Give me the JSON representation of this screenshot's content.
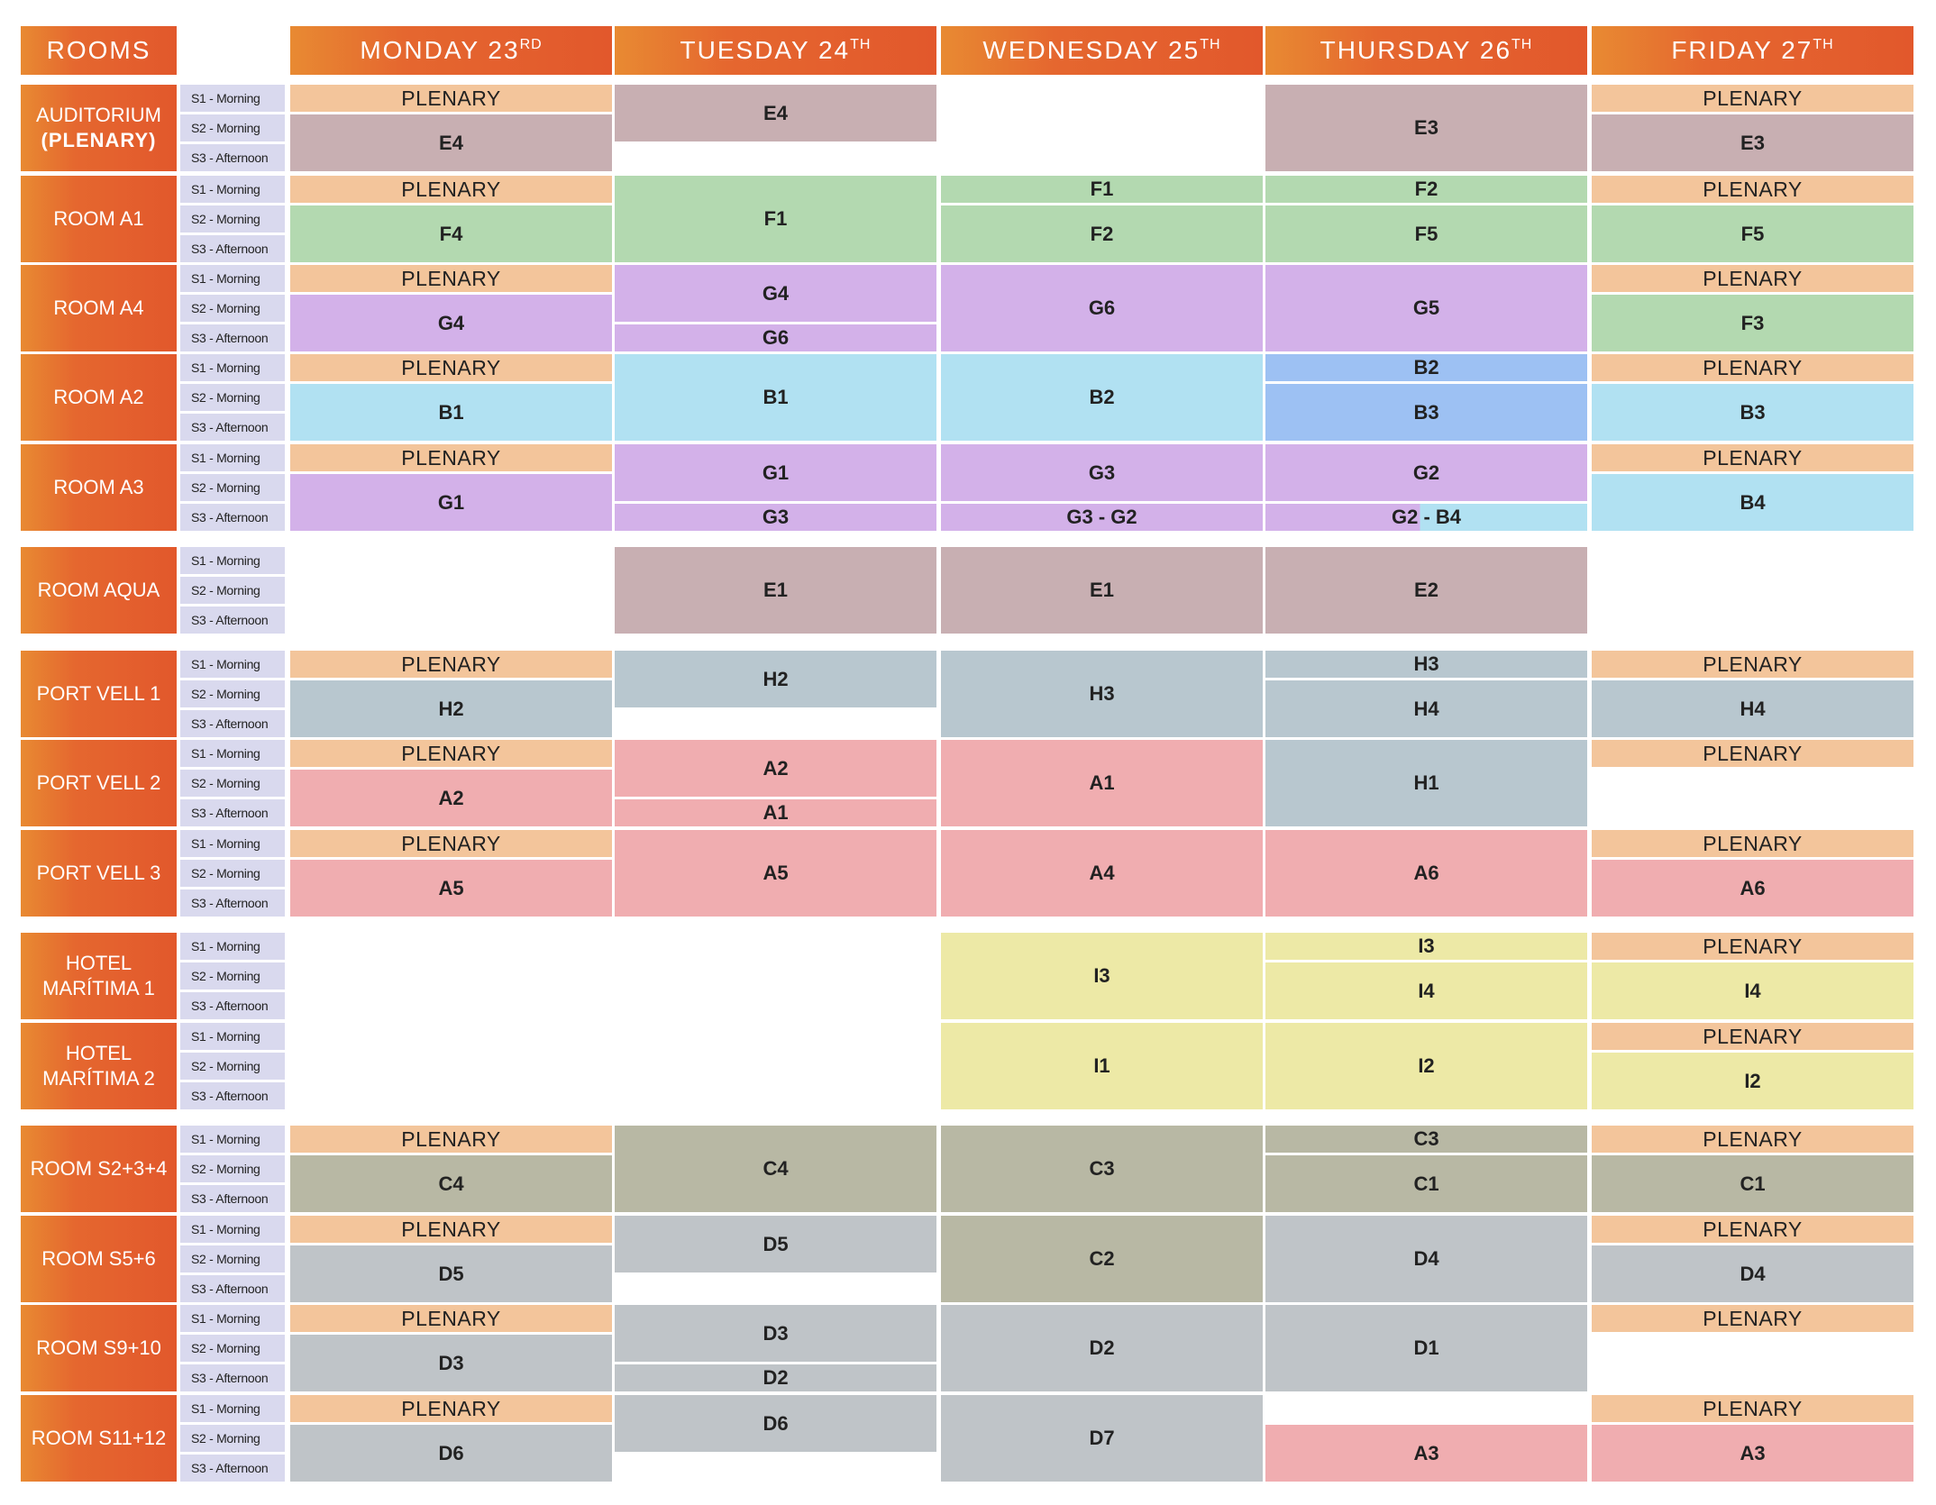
{
  "header": {
    "rooms_label": "ROOMS",
    "days": [
      {
        "name": "MONDAY 23",
        "suffix": "RD"
      },
      {
        "name": "TUESDAY 24",
        "suffix": "TH"
      },
      {
        "name": "WEDNESDAY 25",
        "suffix": "TH"
      },
      {
        "name": "THURSDAY 26",
        "suffix": "TH"
      },
      {
        "name": "FRIDAY 27",
        "suffix": "TH"
      }
    ]
  },
  "session_labels": [
    "S1 - Morning",
    "S2 - Morning",
    "S3 - Afternoon"
  ],
  "colors": {
    "header_gradient_start": "#e88a32",
    "header_gradient_end": "#e2582c",
    "session_bg": "#d9d9ee",
    "plenary": "#f3c59b",
    "E": "#c8afb2",
    "F": "#b3d9b0",
    "G": "#d3b1e9",
    "B": "#b1e1f2",
    "B_dark": "#9dc1f3",
    "H": "#b8c7cf",
    "A": "#f0adb0",
    "I": "#ecead1",
    "I_yellow": "#ede9a6",
    "C": "#b8b8a4",
    "D": "#bfc4c8"
  },
  "rooms": [
    {
      "name": "AUDITORIUM",
      "sub": "(PLENARY)",
      "group": 0,
      "days": [
        [
          {
            "s": 0,
            "n": 1,
            "label": "PLENARY",
            "c": "plenary"
          },
          {
            "s": 1,
            "n": 2,
            "label": "E4",
            "c": "E"
          }
        ],
        [
          {
            "s": 0,
            "n": 2,
            "label": "E4",
            "c": "E"
          }
        ],
        [],
        [
          {
            "s": 0,
            "n": 3,
            "label": "E3",
            "c": "E"
          }
        ],
        [
          {
            "s": 0,
            "n": 1,
            "label": "PLENARY",
            "c": "plenary"
          },
          {
            "s": 1,
            "n": 2,
            "label": "E3",
            "c": "E"
          }
        ]
      ]
    },
    {
      "name": "ROOM A1",
      "group": 0,
      "days": [
        [
          {
            "s": 0,
            "n": 1,
            "label": "PLENARY",
            "c": "plenary"
          },
          {
            "s": 1,
            "n": 2,
            "label": "F4",
            "c": "F"
          }
        ],
        [
          {
            "s": 0,
            "n": 3,
            "label": "F1",
            "c": "F"
          }
        ],
        [
          {
            "s": 0,
            "n": 1,
            "label": "F1",
            "c": "F"
          },
          {
            "s": 1,
            "n": 2,
            "label": "F2",
            "c": "F"
          }
        ],
        [
          {
            "s": 0,
            "n": 1,
            "label": "F2",
            "c": "F"
          },
          {
            "s": 1,
            "n": 2,
            "label": "F5",
            "c": "F"
          }
        ],
        [
          {
            "s": 0,
            "n": 1,
            "label": "PLENARY",
            "c": "plenary"
          },
          {
            "s": 1,
            "n": 2,
            "label": "F5",
            "c": "F"
          }
        ]
      ]
    },
    {
      "name": "ROOM A4",
      "group": 0,
      "days": [
        [
          {
            "s": 0,
            "n": 1,
            "label": "PLENARY",
            "c": "plenary"
          },
          {
            "s": 1,
            "n": 2,
            "label": "G4",
            "c": "G"
          }
        ],
        [
          {
            "s": 0,
            "n": 2,
            "label": "G4",
            "c": "G"
          },
          {
            "s": 2,
            "n": 1,
            "label": "G6",
            "c": "G"
          }
        ],
        [
          {
            "s": 0,
            "n": 3,
            "label": "G6",
            "c": "G"
          }
        ],
        [
          {
            "s": 0,
            "n": 3,
            "label": "G5",
            "c": "G"
          }
        ],
        [
          {
            "s": 0,
            "n": 1,
            "label": "PLENARY",
            "c": "plenary"
          },
          {
            "s": 1,
            "n": 2,
            "label": "F3",
            "c": "F"
          }
        ]
      ]
    },
    {
      "name": "ROOM A2",
      "group": 0,
      "days": [
        [
          {
            "s": 0,
            "n": 1,
            "label": "PLENARY",
            "c": "plenary"
          },
          {
            "s": 1,
            "n": 2,
            "label": "B1",
            "c": "B"
          }
        ],
        [
          {
            "s": 0,
            "n": 3,
            "label": "B1",
            "c": "B"
          }
        ],
        [
          {
            "s": 0,
            "n": 3,
            "label": "B2",
            "c": "B"
          }
        ],
        [
          {
            "s": 0,
            "n": 1,
            "label": "B2",
            "c": "B_dark"
          },
          {
            "s": 1,
            "n": 2,
            "label": "B3",
            "c": "B_dark"
          }
        ],
        [
          {
            "s": 0,
            "n": 1,
            "label": "PLENARY",
            "c": "plenary"
          },
          {
            "s": 1,
            "n": 2,
            "label": "B3",
            "c": "B"
          }
        ]
      ]
    },
    {
      "name": "ROOM A3",
      "group": 0,
      "days": [
        [
          {
            "s": 0,
            "n": 1,
            "label": "PLENARY",
            "c": "plenary"
          },
          {
            "s": 1,
            "n": 2,
            "label": "G1",
            "c": "G"
          }
        ],
        [
          {
            "s": 0,
            "n": 2,
            "label": "G1",
            "c": "G"
          },
          {
            "s": 2,
            "n": 1,
            "label": "G3",
            "c": "G"
          }
        ],
        [
          {
            "s": 0,
            "n": 2,
            "label": "G3",
            "c": "G"
          },
          {
            "s": 2,
            "n": 1,
            "label": "G3 - G2",
            "c": "G"
          }
        ],
        [
          {
            "s": 0,
            "n": 2,
            "label": "G2",
            "c": "G"
          },
          {
            "s": 2,
            "n": 1,
            "label": "G2 - B4",
            "c": "G",
            "c2": "B"
          }
        ],
        [
          {
            "s": 0,
            "n": 1,
            "label": "PLENARY",
            "c": "plenary"
          },
          {
            "s": 1,
            "n": 2,
            "label": "B4",
            "c": "B"
          }
        ]
      ]
    },
    {
      "name": "ROOM AQUA",
      "group": 1,
      "days": [
        [],
        [
          {
            "s": 0,
            "n": 3,
            "label": "E1",
            "c": "E"
          }
        ],
        [
          {
            "s": 0,
            "n": 3,
            "label": "E1",
            "c": "E"
          }
        ],
        [
          {
            "s": 0,
            "n": 3,
            "label": "E2",
            "c": "E"
          }
        ],
        []
      ]
    },
    {
      "name": "PORT VELL 1",
      "group": 2,
      "days": [
        [
          {
            "s": 0,
            "n": 1,
            "label": "PLENARY",
            "c": "plenary"
          },
          {
            "s": 1,
            "n": 2,
            "label": "H2",
            "c": "H"
          }
        ],
        [
          {
            "s": 0,
            "n": 2,
            "label": "H2",
            "c": "H"
          }
        ],
        [
          {
            "s": 0,
            "n": 3,
            "label": "H3",
            "c": "H"
          }
        ],
        [
          {
            "s": 0,
            "n": 1,
            "label": "H3",
            "c": "H"
          },
          {
            "s": 1,
            "n": 2,
            "label": "H4",
            "c": "H"
          }
        ],
        [
          {
            "s": 0,
            "n": 1,
            "label": "PLENARY",
            "c": "plenary"
          },
          {
            "s": 1,
            "n": 2,
            "label": "H4",
            "c": "H"
          }
        ]
      ]
    },
    {
      "name": "PORT VELL 2",
      "group": 2,
      "days": [
        [
          {
            "s": 0,
            "n": 1,
            "label": "PLENARY",
            "c": "plenary"
          },
          {
            "s": 1,
            "n": 2,
            "label": "A2",
            "c": "A"
          }
        ],
        [
          {
            "s": 0,
            "n": 2,
            "label": "A2",
            "c": "A"
          },
          {
            "s": 2,
            "n": 1,
            "label": "A1",
            "c": "A"
          }
        ],
        [
          {
            "s": 0,
            "n": 3,
            "label": "A1",
            "c": "A"
          }
        ],
        [
          {
            "s": 0,
            "n": 3,
            "label": "H1",
            "c": "H"
          }
        ],
        [
          {
            "s": 0,
            "n": 1,
            "label": "PLENARY",
            "c": "plenary"
          }
        ]
      ]
    },
    {
      "name": "PORT VELL 3",
      "group": 2,
      "days": [
        [
          {
            "s": 0,
            "n": 1,
            "label": "PLENARY",
            "c": "plenary"
          },
          {
            "s": 1,
            "n": 2,
            "label": "A5",
            "c": "A"
          }
        ],
        [
          {
            "s": 0,
            "n": 3,
            "label": "A5",
            "c": "A"
          }
        ],
        [
          {
            "s": 0,
            "n": 3,
            "label": "A4",
            "c": "A"
          }
        ],
        [
          {
            "s": 0,
            "n": 3,
            "label": "A6",
            "c": "A"
          }
        ],
        [
          {
            "s": 0,
            "n": 1,
            "label": "PLENARY",
            "c": "plenary"
          },
          {
            "s": 1,
            "n": 2,
            "label": "A6",
            "c": "A"
          }
        ]
      ]
    },
    {
      "name": "HOTEL",
      "sub2": "MARÍTIMA 1",
      "group": 3,
      "days": [
        [],
        [],
        [
          {
            "s": 0,
            "n": 3,
            "label": "I3",
            "c": "I_yellow"
          }
        ],
        [
          {
            "s": 0,
            "n": 1,
            "label": "I3",
            "c": "I_yellow"
          },
          {
            "s": 1,
            "n": 2,
            "label": "I4",
            "c": "I_yellow"
          }
        ],
        [
          {
            "s": 0,
            "n": 1,
            "label": "PLENARY",
            "c": "plenary"
          },
          {
            "s": 1,
            "n": 2,
            "label": "I4",
            "c": "I_yellow"
          }
        ]
      ]
    },
    {
      "name": "HOTEL",
      "sub2": "MARÍTIMA 2",
      "group": 3,
      "days": [
        [],
        [],
        [
          {
            "s": 0,
            "n": 3,
            "label": "I1",
            "c": "I_yellow"
          }
        ],
        [
          {
            "s": 0,
            "n": 3,
            "label": "I2",
            "c": "I_yellow"
          }
        ],
        [
          {
            "s": 0,
            "n": 1,
            "label": "PLENARY",
            "c": "plenary"
          },
          {
            "s": 1,
            "n": 2,
            "label": "I2",
            "c": "I_yellow"
          }
        ]
      ]
    },
    {
      "name": "ROOM S2+3+4",
      "group": 4,
      "days": [
        [
          {
            "s": 0,
            "n": 1,
            "label": "PLENARY",
            "c": "plenary"
          },
          {
            "s": 1,
            "n": 2,
            "label": "C4",
            "c": "C"
          }
        ],
        [
          {
            "s": 0,
            "n": 3,
            "label": "C4",
            "c": "C"
          }
        ],
        [
          {
            "s": 0,
            "n": 3,
            "label": "C3",
            "c": "C"
          }
        ],
        [
          {
            "s": 0,
            "n": 1,
            "label": "C3",
            "c": "C"
          },
          {
            "s": 1,
            "n": 2,
            "label": "C1",
            "c": "C"
          }
        ],
        [
          {
            "s": 0,
            "n": 1,
            "label": "PLENARY",
            "c": "plenary"
          },
          {
            "s": 1,
            "n": 2,
            "label": "C1",
            "c": "C"
          }
        ]
      ]
    },
    {
      "name": "ROOM S5+6",
      "group": 4,
      "days": [
        [
          {
            "s": 0,
            "n": 1,
            "label": "PLENARY",
            "c": "plenary"
          },
          {
            "s": 1,
            "n": 2,
            "label": "D5",
            "c": "D"
          }
        ],
        [
          {
            "s": 0,
            "n": 2,
            "label": "D5",
            "c": "D"
          }
        ],
        [
          {
            "s": 0,
            "n": 3,
            "label": "C2",
            "c": "C"
          }
        ],
        [
          {
            "s": 0,
            "n": 3,
            "label": "D4",
            "c": "D"
          }
        ],
        [
          {
            "s": 0,
            "n": 1,
            "label": "PLENARY",
            "c": "plenary"
          },
          {
            "s": 1,
            "n": 2,
            "label": "D4",
            "c": "D"
          }
        ]
      ]
    },
    {
      "name": "ROOM S9+10",
      "group": 4,
      "days": [
        [
          {
            "s": 0,
            "n": 1,
            "label": "PLENARY",
            "c": "plenary"
          },
          {
            "s": 1,
            "n": 2,
            "label": "D3",
            "c": "D"
          }
        ],
        [
          {
            "s": 0,
            "n": 2,
            "label": "D3",
            "c": "D"
          },
          {
            "s": 2,
            "n": 1,
            "label": "D2",
            "c": "D"
          }
        ],
        [
          {
            "s": 0,
            "n": 3,
            "label": "D2",
            "c": "D"
          }
        ],
        [
          {
            "s": 0,
            "n": 3,
            "label": "D1",
            "c": "D"
          }
        ],
        [
          {
            "s": 0,
            "n": 1,
            "label": "PLENARY",
            "c": "plenary"
          }
        ]
      ]
    },
    {
      "name": "ROOM S11+12",
      "group": 4,
      "days": [
        [
          {
            "s": 0,
            "n": 1,
            "label": "PLENARY",
            "c": "plenary"
          },
          {
            "s": 1,
            "n": 2,
            "label": "D6",
            "c": "D"
          }
        ],
        [
          {
            "s": 0,
            "n": 2,
            "label": "D6",
            "c": "D"
          }
        ],
        [
          {
            "s": 0,
            "n": 3,
            "label": "D7",
            "c": "D"
          }
        ],
        [
          {
            "s": 1,
            "n": 2,
            "label": "A3",
            "c": "A"
          }
        ],
        [
          {
            "s": 0,
            "n": 1,
            "label": "PLENARY",
            "c": "plenary"
          },
          {
            "s": 1,
            "n": 2,
            "label": "A3",
            "c": "A"
          }
        ]
      ]
    }
  ]
}
